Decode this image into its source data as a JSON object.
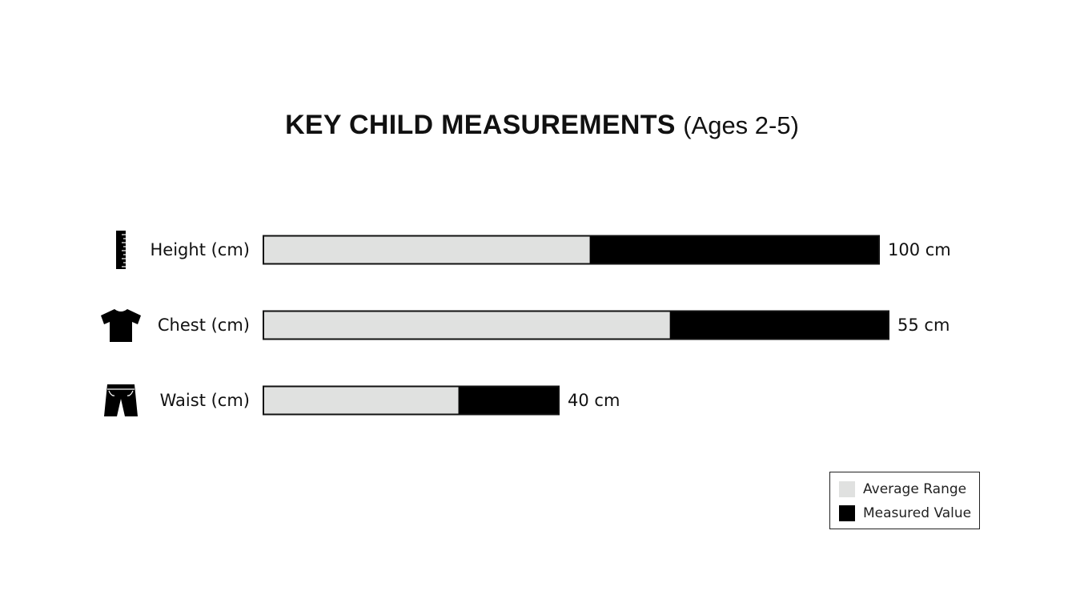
{
  "chart_data": {
    "type": "bar",
    "title": "KEY CHILD MEASUREMENTS",
    "subtitle": "(Ages 2-5)",
    "categories": [
      "Height (cm)",
      "Chest (cm)",
      "Waist (cm)"
    ],
    "icons": [
      "ruler-icon",
      "tshirt-icon",
      "shorts-icon"
    ],
    "series": [
      {
        "name": "Average Range",
        "values": [
          53,
          65,
          66
        ]
      },
      {
        "name": "Measured Value",
        "values": [
          100,
          55,
          40
        ]
      }
    ],
    "value_labels": [
      "100 cm",
      "55 cm",
      "40 cm"
    ],
    "legend_position": "bottom-right",
    "grid": false,
    "colors": {
      "average": "#e0e1e0",
      "measured": "#000000",
      "outline": "#111111"
    }
  },
  "legend": {
    "items": [
      {
        "label": "Average Range",
        "color": "#e0e1e0"
      },
      {
        "label": "Measured Value",
        "color": "#000000"
      }
    ]
  }
}
